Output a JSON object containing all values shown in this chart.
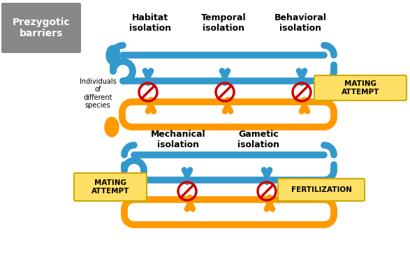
{
  "bg_color": "#ffffff",
  "blue": "#3399CC",
  "orange": "#FF9900",
  "red": "#CC0000",
  "gray_box": "#888888",
  "yellow_box": "#FFE066",
  "yellow_box_border": "#CCAA00",
  "title_text": "Prezygotic\nbarriers",
  "top_labels": [
    "Habitat\nisolation",
    "Temporal\nisolation",
    "Behavioral\nisolation"
  ],
  "bottom_labels": [
    "Mechanical\nisolation",
    "Gametic\nisolation"
  ],
  "individuals_label": "Individuals\nof\ndifferent\nspecies",
  "mating_attempt_label": "MATING\nATTEMPT",
  "fertilization_label": "FERTILIZATION"
}
